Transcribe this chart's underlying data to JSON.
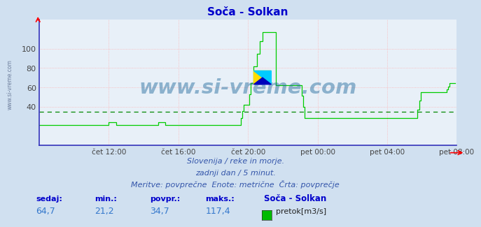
{
  "title": "Soča - Solkan",
  "title_color": "#0000cc",
  "bg_color": "#d0e0f0",
  "plot_bg_color": "#e8f0f8",
  "line_color": "#00cc00",
  "avg_line_color": "#008800",
  "avg_line_value": 34.7,
  "grid_color": "#ffaaaa",
  "grid_style": "dotted",
  "watermark": "www.si-vreme.com",
  "watermark_color": "#1a6699",
  "subtitle1": "Slovenija / reke in morje.",
  "subtitle2": "zadnji dan / 5 minut.",
  "subtitle3": "Meritve: povprečne  Enote: metrične  Črta: povprečje",
  "footer_labels": [
    "sedaj:",
    "min.:",
    "povpr.:",
    "maks.:"
  ],
  "footer_values": [
    "64,7",
    "21,2",
    "34,7",
    "117,4"
  ],
  "footer_station": "Soča - Solkan",
  "footer_legend": "pretok[m3/s]",
  "legend_color": "#00bb00",
  "ylim": [
    0,
    130
  ],
  "yticks": [
    40,
    60,
    80,
    100
  ],
  "x_tick_labels": [
    "čet 12:00",
    "čet 16:00",
    "čet 20:00",
    "pet 00:00",
    "pet 04:00",
    "pet 08:00"
  ],
  "x_tick_positions": [
    48,
    96,
    144,
    192,
    240,
    288
  ],
  "total_points": 288,
  "side_label": "www.si-vreme.com",
  "axes_color": "#3333bb",
  "tick_color": "#444444",
  "subtitle_color": "#3355aa"
}
